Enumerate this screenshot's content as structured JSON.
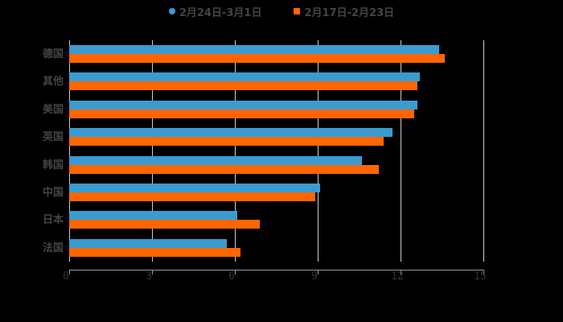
{
  "chart_data": {
    "type": "bar",
    "orientation": "horizontal",
    "title": "",
    "xlabel": "",
    "ylabel": "",
    "xlim": [
      0,
      15
    ],
    "xticks": [
      "0",
      "3",
      "6",
      "9",
      "12",
      "15"
    ],
    "grid": true,
    "legend_position": "top",
    "categories": [
      "德国",
      "其他",
      "美国",
      "英国",
      "韩国",
      "中国",
      "日本",
      "法国"
    ],
    "series": [
      {
        "name": "2月24日-3月1日",
        "color": "#3a9bd1",
        "marker": "circle",
        "values": [
          13.4,
          12.7,
          12.6,
          11.7,
          10.6,
          9.1,
          6.1,
          5.7
        ]
      },
      {
        "name": "2月17日-2月23日",
        "color": "#ff6600",
        "marker": "square",
        "values": [
          13.6,
          12.6,
          12.5,
          11.4,
          11.2,
          8.9,
          6.9,
          6.2
        ]
      }
    ]
  }
}
